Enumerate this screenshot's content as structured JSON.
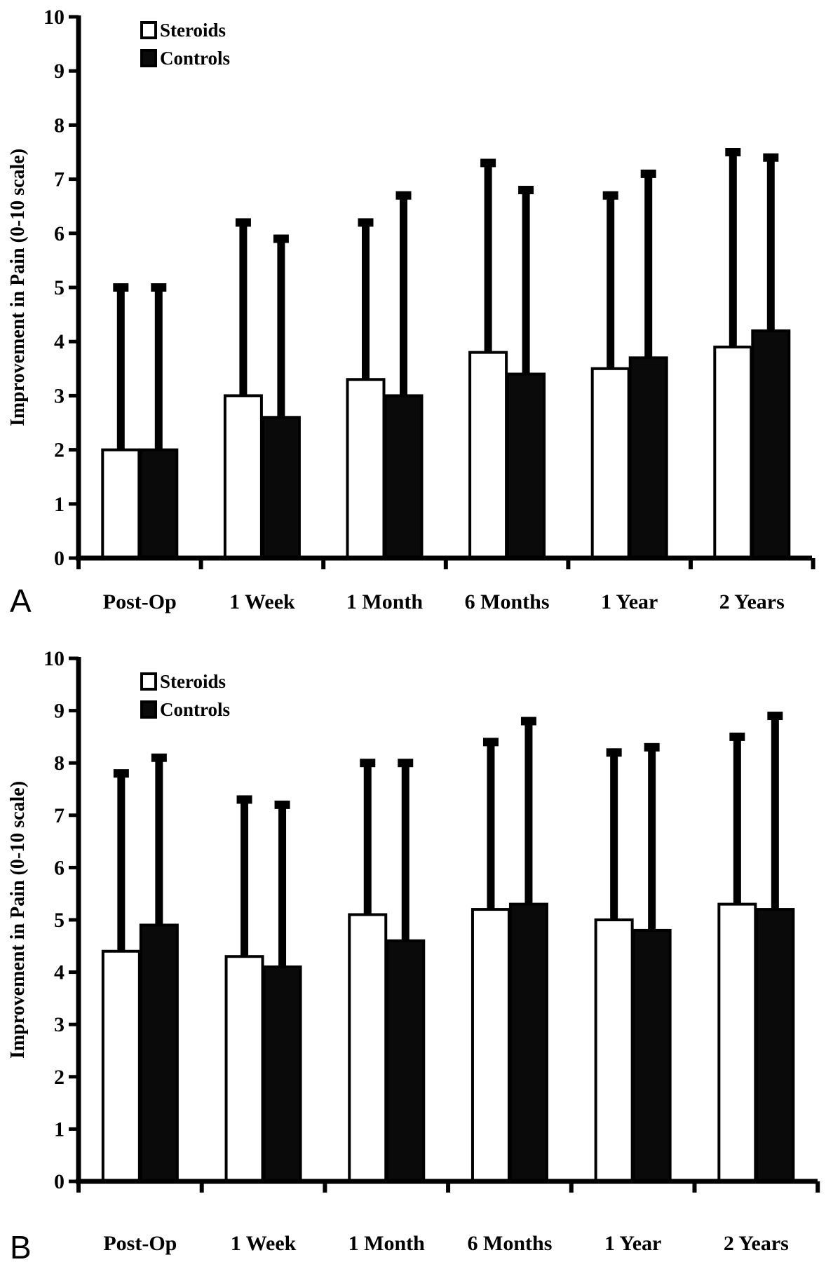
{
  "colors": {
    "steroids_fill": "#ffffff",
    "controls_fill": "#0a0a0a",
    "axis": "#000000"
  },
  "chart_data": [
    {
      "panel": "A",
      "type": "bar",
      "ylabel": "Improvement in Pain (0-10 scale)",
      "ylim": [
        0,
        10
      ],
      "yticks": [
        "0",
        "1",
        "2",
        "3",
        "4",
        "5",
        "6",
        "7",
        "8",
        "9",
        "10"
      ],
      "categories": [
        "Post-Op",
        "1 Week",
        "1 Month",
        "6 Months",
        "1 Year",
        "2 Years"
      ],
      "legend": {
        "position": "top-left",
        "entries": [
          "Steroids",
          "Controls"
        ]
      },
      "series": [
        {
          "name": "Steroids",
          "values": [
            2.0,
            3.0,
            3.3,
            3.8,
            3.5,
            3.9
          ],
          "error_upper": [
            5.0,
            6.2,
            6.2,
            7.3,
            6.7,
            7.5
          ]
        },
        {
          "name": "Controls",
          "values": [
            2.0,
            2.6,
            3.0,
            3.4,
            3.7,
            4.2
          ],
          "error_upper": [
            5.0,
            5.9,
            6.7,
            6.8,
            7.1,
            7.4
          ]
        }
      ]
    },
    {
      "panel": "B",
      "type": "bar",
      "ylabel": "Improvement in Pain (0-10 scale)",
      "ylim": [
        0,
        10
      ],
      "yticks": [
        "0",
        "1",
        "2",
        "3",
        "4",
        "5",
        "6",
        "7",
        "8",
        "9",
        "10"
      ],
      "categories": [
        "Post-Op",
        "1 Week",
        "1 Month",
        "6 Months",
        "1 Year",
        "2 Years"
      ],
      "legend": {
        "position": "top-left",
        "entries": [
          "Steroids",
          "Controls"
        ]
      },
      "series": [
        {
          "name": "Steroids",
          "values": [
            4.4,
            4.3,
            5.1,
            5.2,
            5.0,
            5.3
          ],
          "error_upper": [
            7.8,
            7.3,
            8.0,
            8.4,
            8.2,
            8.5
          ]
        },
        {
          "name": "Controls",
          "values": [
            4.9,
            4.1,
            4.6,
            5.3,
            4.8,
            5.2
          ],
          "error_upper": [
            8.1,
            7.2,
            8.0,
            8.8,
            8.3,
            8.9
          ]
        }
      ]
    }
  ]
}
